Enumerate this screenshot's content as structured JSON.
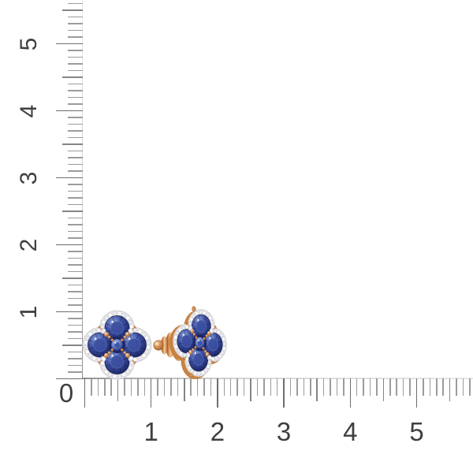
{
  "canvas": {
    "background": "#ffffff"
  },
  "ruler": {
    "corner_label": "0",
    "vertical_labels": [
      "1",
      "2",
      "3",
      "4",
      "5"
    ],
    "horizontal_labels": [
      "1",
      "2",
      "3",
      "4",
      "5"
    ],
    "label_color": "#3f3f3f",
    "tick_minor_color": "#9c9c9c",
    "tick_medium_color": "#858585",
    "tick_major_color": "#6e6e6e",
    "ticks_per_unit": 10
  },
  "earrings": {
    "left": {
      "name": "clover-halo-stud-front-view"
    },
    "right": {
      "name": "clover-halo-stud-side-view-with-screw-back"
    },
    "palette": {
      "sapphire-light": "#8ea3e0",
      "sapphire-mid": "#3b4e9f",
      "sapphire-deep": "#1a2463",
      "sapphire-center": "#5a71bd",
      "sapphire-pale": "#aebde8",
      "diamond-white": "#fdfdfe",
      "diamond-gray": "#ececf0",
      "halo-base": "#e9e9ec",
      "halo-edge": "#d3d3d9",
      "halo-dot-stroke": "#bcbcc4",
      "gold-light": "#f6cf9f",
      "gold-mid": "#d28f55",
      "gold-deep": "#a05b28",
      "gold-back": "#c9823f",
      "stone-rim": "#141c4e",
      "prong-highlight": "#fbe2bd"
    }
  }
}
